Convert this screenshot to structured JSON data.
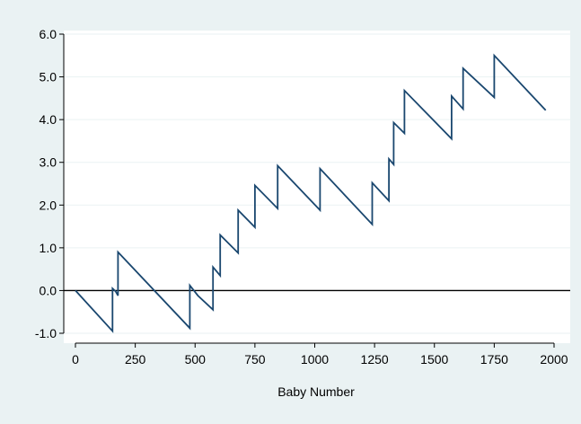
{
  "chart_data": {
    "type": "line",
    "title": "",
    "xlabel": "Baby Number",
    "ylabel": "",
    "xlim": [
      0,
      2000
    ],
    "ylim": [
      -1.0,
      6.0
    ],
    "xticks": [
      0,
      250,
      500,
      750,
      1000,
      1250,
      1500,
      1750,
      2000
    ],
    "xtick_labels": [
      "0",
      "250",
      "500",
      "750",
      "1000",
      "1250",
      "1500",
      "1750",
      "2000"
    ],
    "yticks": [
      -1.0,
      0.0,
      1.0,
      2.0,
      3.0,
      4.0,
      5.0,
      6.0
    ],
    "ytick_labels": [
      "-1.0",
      "0.0",
      "1.0",
      "2.0",
      "3.0",
      "4.0",
      "5.0",
      "6.0"
    ],
    "grid": true,
    "reference_line_y": 0,
    "colors": {
      "background": "#eaf2f3",
      "plot_background": "#ffffff",
      "series": "#1a476f",
      "gridline": "#eaf2f3",
      "reference_line": "#000000"
    },
    "series": [
      {
        "points": [
          [
            0,
            0.0
          ],
          [
            155,
            -0.95
          ],
          [
            155,
            0.05
          ],
          [
            168,
            -0.02
          ],
          [
            178,
            -0.12
          ],
          [
            178,
            0.9
          ],
          [
            478,
            -0.88
          ],
          [
            478,
            0.12
          ],
          [
            512,
            -0.12
          ],
          [
            575,
            -0.45
          ],
          [
            575,
            0.55
          ],
          [
            605,
            0.35
          ],
          [
            605,
            1.3
          ],
          [
            680,
            0.88
          ],
          [
            680,
            1.88
          ],
          [
            750,
            1.48
          ],
          [
            750,
            2.46
          ],
          [
            845,
            1.92
          ],
          [
            845,
            2.92
          ],
          [
            1022,
            1.88
          ],
          [
            1022,
            2.85
          ],
          [
            1240,
            1.55
          ],
          [
            1240,
            2.52
          ],
          [
            1310,
            2.1
          ],
          [
            1310,
            3.08
          ],
          [
            1330,
            2.95
          ],
          [
            1330,
            3.93
          ],
          [
            1375,
            3.68
          ],
          [
            1375,
            4.68
          ],
          [
            1572,
            3.55
          ],
          [
            1572,
            4.55
          ],
          [
            1620,
            4.25
          ],
          [
            1620,
            5.2
          ],
          [
            1750,
            4.52
          ],
          [
            1750,
            5.5
          ],
          [
            1965,
            4.22
          ]
        ]
      }
    ]
  }
}
